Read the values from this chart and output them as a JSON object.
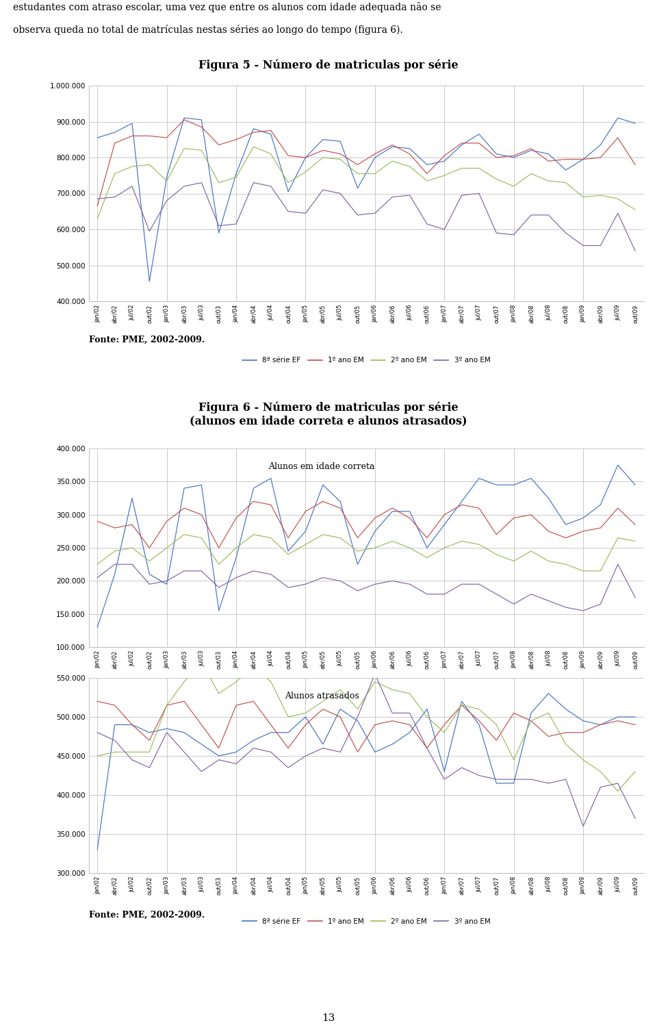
{
  "fig5_title": "Figura 5 - Número de matriculas por série",
  "fig6_title": "Figura 6 - Número de matriculas por série\n(alunos em idade correta e alunos atrasados)",
  "fonte": "Fonte: PME, 2002-2009.",
  "text_top1": "estudantes com atraso escolar, uma vez que entre os alunos com idade adequada não se",
  "text_top2": "observa queda no total de matrículas nestas séries ao longo do tempo (figura 6).",
  "page_num": "13",
  "colors": {
    "serie8ef": "#4472C4",
    "ano1em": "#C0504D",
    "ano2em": "#9BBB59",
    "ano3em": "#8064A2"
  },
  "legend_labels": [
    "8ª série EF",
    "1º ano EM",
    "2º ano EM",
    "3º ano EM"
  ],
  "x_labels": [
    "jan/02",
    "abr/02",
    "jul/02",
    "out/02",
    "jan/03",
    "abr/03",
    "jul/03",
    "out/03",
    "jan/04",
    "abr/04",
    "jul/04",
    "out/04",
    "jan/05",
    "abr/05",
    "jul/05",
    "out/05",
    "jan/06",
    "abr/06",
    "jul/06",
    "out/06",
    "jan/07",
    "abr/07",
    "jul/07",
    "out/07",
    "jan/08",
    "abr/08",
    "jul/08",
    "out/08",
    "jan/09",
    "abr/09",
    "jul/09",
    "out/09"
  ],
  "fig5": {
    "ylim": [
      400000,
      1000000
    ],
    "yticks": [
      400000,
      500000,
      600000,
      700000,
      800000,
      900000,
      1000000
    ],
    "serie8ef": [
      855000,
      870000,
      895000,
      455000,
      745000,
      910000,
      905000,
      590000,
      755000,
      880000,
      865000,
      705000,
      800000,
      850000,
      845000,
      715000,
      800000,
      830000,
      825000,
      780000,
      790000,
      835000,
      865000,
      810000,
      800000,
      820000,
      810000,
      765000,
      795000,
      835000,
      910000,
      895000
    ],
    "ano1em": [
      665000,
      840000,
      860000,
      860000,
      855000,
      905000,
      885000,
      835000,
      850000,
      870000,
      875000,
      805000,
      800000,
      820000,
      810000,
      780000,
      810000,
      835000,
      810000,
      755000,
      805000,
      840000,
      840000,
      800000,
      805000,
      825000,
      790000,
      795000,
      795000,
      800000,
      855000,
      780000
    ],
    "ano2em": [
      630000,
      755000,
      775000,
      780000,
      735000,
      825000,
      820000,
      730000,
      745000,
      830000,
      810000,
      730000,
      760000,
      800000,
      795000,
      755000,
      755000,
      790000,
      775000,
      735000,
      750000,
      770000,
      770000,
      740000,
      720000,
      755000,
      735000,
      730000,
      690000,
      695000,
      685000,
      655000
    ],
    "ano3em": [
      685000,
      690000,
      720000,
      595000,
      680000,
      720000,
      730000,
      610000,
      615000,
      730000,
      720000,
      650000,
      645000,
      710000,
      700000,
      640000,
      645000,
      690000,
      695000,
      615000,
      600000,
      695000,
      700000,
      590000,
      585000,
      640000,
      640000,
      590000,
      555000,
      555000,
      645000,
      540000
    ]
  },
  "fig6_correct": {
    "ylim": [
      100000,
      400000
    ],
    "yticks": [
      100000,
      150000,
      200000,
      250000,
      300000,
      350000,
      400000
    ],
    "annotation": "Alunos em idade correta",
    "serie8ef": [
      130000,
      210000,
      325000,
      210000,
      195000,
      340000,
      345000,
      155000,
      235000,
      340000,
      355000,
      245000,
      275000,
      345000,
      320000,
      225000,
      275000,
      305000,
      305000,
      250000,
      285000,
      320000,
      355000,
      345000,
      345000,
      355000,
      325000,
      285000,
      295000,
      315000,
      375000,
      345000
    ],
    "ano1em": [
      290000,
      280000,
      285000,
      250000,
      290000,
      310000,
      300000,
      250000,
      295000,
      320000,
      315000,
      265000,
      305000,
      320000,
      310000,
      265000,
      295000,
      310000,
      295000,
      265000,
      300000,
      315000,
      310000,
      270000,
      295000,
      300000,
      275000,
      265000,
      275000,
      280000,
      310000,
      285000
    ],
    "ano2em": [
      225000,
      245000,
      250000,
      230000,
      250000,
      270000,
      265000,
      225000,
      250000,
      270000,
      265000,
      240000,
      255000,
      270000,
      265000,
      245000,
      250000,
      260000,
      250000,
      235000,
      250000,
      260000,
      255000,
      240000,
      230000,
      245000,
      230000,
      225000,
      215000,
      215000,
      265000,
      260000
    ],
    "ano3em": [
      205000,
      225000,
      225000,
      195000,
      200000,
      215000,
      215000,
      190000,
      205000,
      215000,
      210000,
      190000,
      195000,
      205000,
      200000,
      185000,
      195000,
      200000,
      195000,
      180000,
      180000,
      195000,
      195000,
      180000,
      165000,
      180000,
      170000,
      160000,
      155000,
      165000,
      225000,
      175000
    ]
  },
  "fig6_delayed": {
    "ylim": [
      300000,
      550000
    ],
    "yticks": [
      300000,
      350000,
      400000,
      450000,
      500000,
      550000
    ],
    "annotation": "Alunos atrasados",
    "serie8ef": [
      330000,
      490000,
      490000,
      480000,
      485000,
      480000,
      465000,
      450000,
      455000,
      470000,
      480000,
      480000,
      500000,
      465000,
      510000,
      495000,
      455000,
      465000,
      480000,
      510000,
      430000,
      520000,
      490000,
      415000,
      415000,
      505000,
      530000,
      510000,
      495000,
      490000,
      500000,
      500000
    ],
    "ano1em": [
      520000,
      515000,
      490000,
      470000,
      515000,
      520000,
      490000,
      460000,
      515000,
      520000,
      490000,
      460000,
      490000,
      510000,
      500000,
      455000,
      490000,
      495000,
      490000,
      460000,
      490000,
      515000,
      495000,
      470000,
      505000,
      495000,
      475000,
      480000,
      480000,
      490000,
      495000,
      490000
    ],
    "ano2em": [
      450000,
      455000,
      455000,
      455000,
      515000,
      545000,
      570000,
      530000,
      545000,
      565000,
      545000,
      500000,
      505000,
      520000,
      535000,
      510000,
      545000,
      535000,
      530000,
      500000,
      480000,
      515000,
      510000,
      490000,
      445000,
      495000,
      505000,
      465000,
      445000,
      430000,
      405000,
      430000
    ],
    "ano3em": [
      480000,
      470000,
      445000,
      435000,
      480000,
      455000,
      430000,
      445000,
      440000,
      460000,
      455000,
      435000,
      450000,
      460000,
      455000,
      500000,
      555000,
      505000,
      505000,
      460000,
      420000,
      435000,
      425000,
      420000,
      420000,
      420000,
      415000,
      420000,
      360000,
      410000,
      415000,
      370000
    ]
  }
}
